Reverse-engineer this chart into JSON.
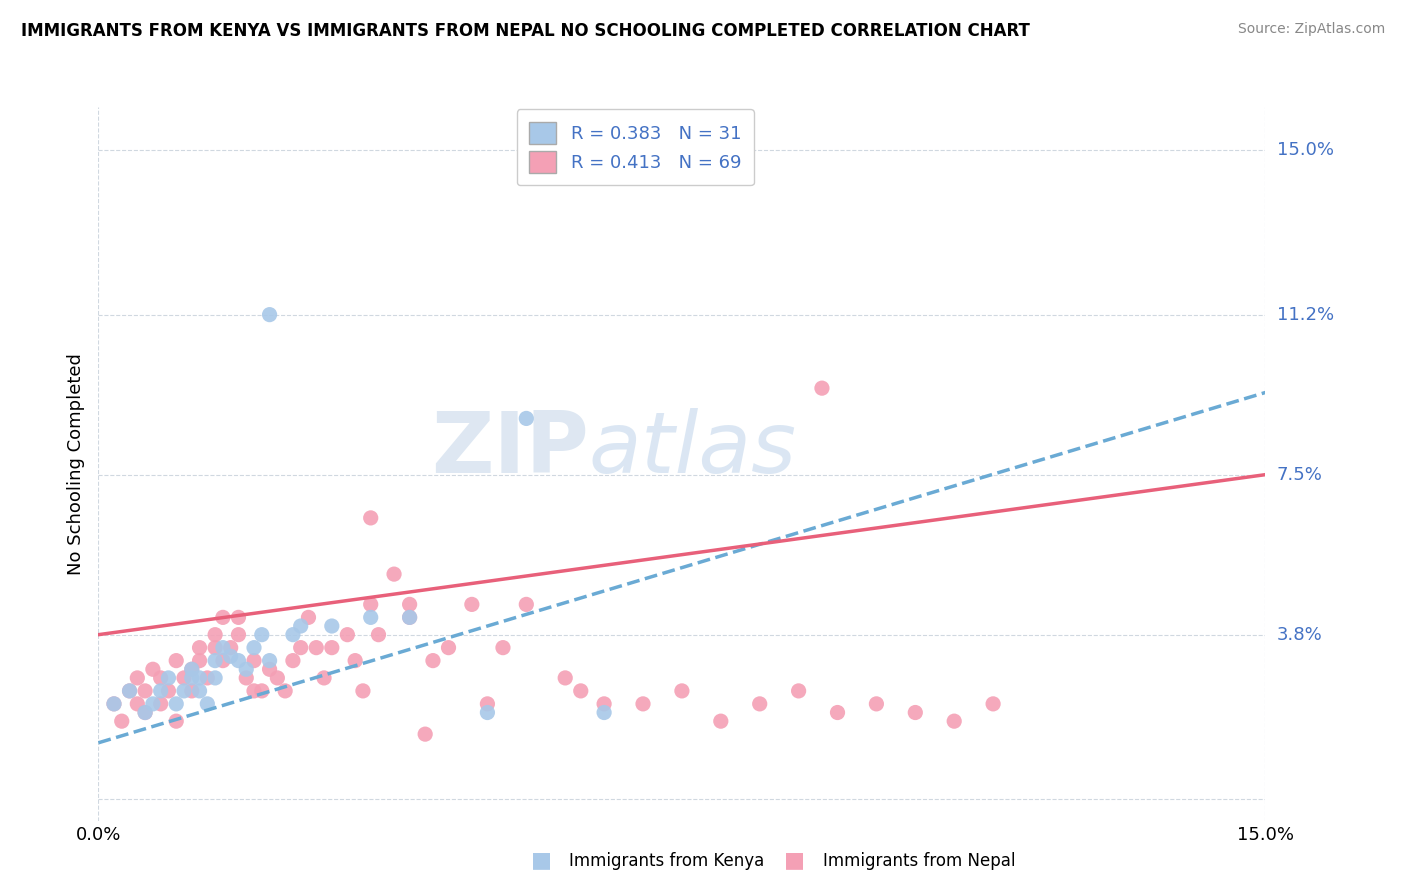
{
  "title": "IMMIGRANTS FROM KENYA VS IMMIGRANTS FROM NEPAL NO SCHOOLING COMPLETED CORRELATION CHART",
  "source": "Source: ZipAtlas.com",
  "ylabel_label": "No Schooling Completed",
  "right_ytick_labels": [
    "15.0%",
    "11.2%",
    "7.5%",
    "3.8%"
  ],
  "right_ytick_vals": [
    0.15,
    0.112,
    0.075,
    0.038
  ],
  "xlim": [
    0.0,
    0.15
  ],
  "ylim": [
    -0.005,
    0.16
  ],
  "kenya_R": 0.383,
  "kenya_N": 31,
  "nepal_R": 0.413,
  "nepal_N": 69,
  "kenya_color": "#a8c8e8",
  "nepal_color": "#f4a0b5",
  "kenya_line_color": "#6aaad4",
  "nepal_line_color": "#e8607a",
  "kenya_scatter": [
    [
      0.002,
      0.022
    ],
    [
      0.004,
      0.025
    ],
    [
      0.006,
      0.02
    ],
    [
      0.007,
      0.022
    ],
    [
      0.008,
      0.025
    ],
    [
      0.009,
      0.028
    ],
    [
      0.01,
      0.022
    ],
    [
      0.011,
      0.025
    ],
    [
      0.012,
      0.028
    ],
    [
      0.012,
      0.03
    ],
    [
      0.013,
      0.025
    ],
    [
      0.013,
      0.028
    ],
    [
      0.014,
      0.022
    ],
    [
      0.015,
      0.032
    ],
    [
      0.015,
      0.028
    ],
    [
      0.016,
      0.035
    ],
    [
      0.017,
      0.033
    ],
    [
      0.018,
      0.032
    ],
    [
      0.019,
      0.03
    ],
    [
      0.02,
      0.035
    ],
    [
      0.021,
      0.038
    ],
    [
      0.022,
      0.032
    ],
    [
      0.025,
      0.038
    ],
    [
      0.026,
      0.04
    ],
    [
      0.03,
      0.04
    ],
    [
      0.035,
      0.042
    ],
    [
      0.04,
      0.042
    ],
    [
      0.05,
      0.02
    ],
    [
      0.055,
      0.088
    ],
    [
      0.065,
      0.02
    ],
    [
      0.022,
      0.112
    ]
  ],
  "nepal_scatter": [
    [
      0.002,
      0.022
    ],
    [
      0.003,
      0.018
    ],
    [
      0.004,
      0.025
    ],
    [
      0.005,
      0.028
    ],
    [
      0.005,
      0.022
    ],
    [
      0.006,
      0.025
    ],
    [
      0.006,
      0.02
    ],
    [
      0.007,
      0.03
    ],
    [
      0.008,
      0.028
    ],
    [
      0.008,
      0.022
    ],
    [
      0.009,
      0.025
    ],
    [
      0.01,
      0.032
    ],
    [
      0.01,
      0.018
    ],
    [
      0.011,
      0.028
    ],
    [
      0.012,
      0.025
    ],
    [
      0.012,
      0.03
    ],
    [
      0.013,
      0.035
    ],
    [
      0.013,
      0.032
    ],
    [
      0.014,
      0.028
    ],
    [
      0.015,
      0.038
    ],
    [
      0.015,
      0.035
    ],
    [
      0.016,
      0.032
    ],
    [
      0.016,
      0.042
    ],
    [
      0.017,
      0.035
    ],
    [
      0.018,
      0.042
    ],
    [
      0.018,
      0.038
    ],
    [
      0.019,
      0.028
    ],
    [
      0.02,
      0.032
    ],
    [
      0.02,
      0.025
    ],
    [
      0.021,
      0.025
    ],
    [
      0.022,
      0.03
    ],
    [
      0.023,
      0.028
    ],
    [
      0.024,
      0.025
    ],
    [
      0.025,
      0.032
    ],
    [
      0.026,
      0.035
    ],
    [
      0.027,
      0.042
    ],
    [
      0.028,
      0.035
    ],
    [
      0.029,
      0.028
    ],
    [
      0.03,
      0.035
    ],
    [
      0.032,
      0.038
    ],
    [
      0.033,
      0.032
    ],
    [
      0.034,
      0.025
    ],
    [
      0.035,
      0.045
    ],
    [
      0.036,
      0.038
    ],
    [
      0.038,
      0.052
    ],
    [
      0.04,
      0.045
    ],
    [
      0.04,
      0.042
    ],
    [
      0.042,
      0.015
    ],
    [
      0.043,
      0.032
    ],
    [
      0.045,
      0.035
    ],
    [
      0.048,
      0.045
    ],
    [
      0.05,
      0.022
    ],
    [
      0.052,
      0.035
    ],
    [
      0.055,
      0.045
    ],
    [
      0.06,
      0.028
    ],
    [
      0.062,
      0.025
    ],
    [
      0.065,
      0.022
    ],
    [
      0.07,
      0.022
    ],
    [
      0.075,
      0.025
    ],
    [
      0.08,
      0.018
    ],
    [
      0.085,
      0.022
    ],
    [
      0.09,
      0.025
    ],
    [
      0.095,
      0.02
    ],
    [
      0.1,
      0.022
    ],
    [
      0.105,
      0.02
    ],
    [
      0.11,
      0.018
    ],
    [
      0.115,
      0.022
    ],
    [
      0.093,
      0.095
    ],
    [
      0.035,
      0.065
    ]
  ],
  "kenya_line_x": [
    0.0,
    0.15
  ],
  "kenya_line_y": [
    0.013,
    0.094
  ],
  "nepal_line_x": [
    0.0,
    0.15
  ],
  "nepal_line_y": [
    0.038,
    0.075
  ],
  "watermark_zip": "ZIP",
  "watermark_atlas": "atlas",
  "background_color": "#ffffff",
  "grid_color": "#d0d8e0",
  "legend_r_color": "#4472c4",
  "legend_n_color": "#4472c4"
}
